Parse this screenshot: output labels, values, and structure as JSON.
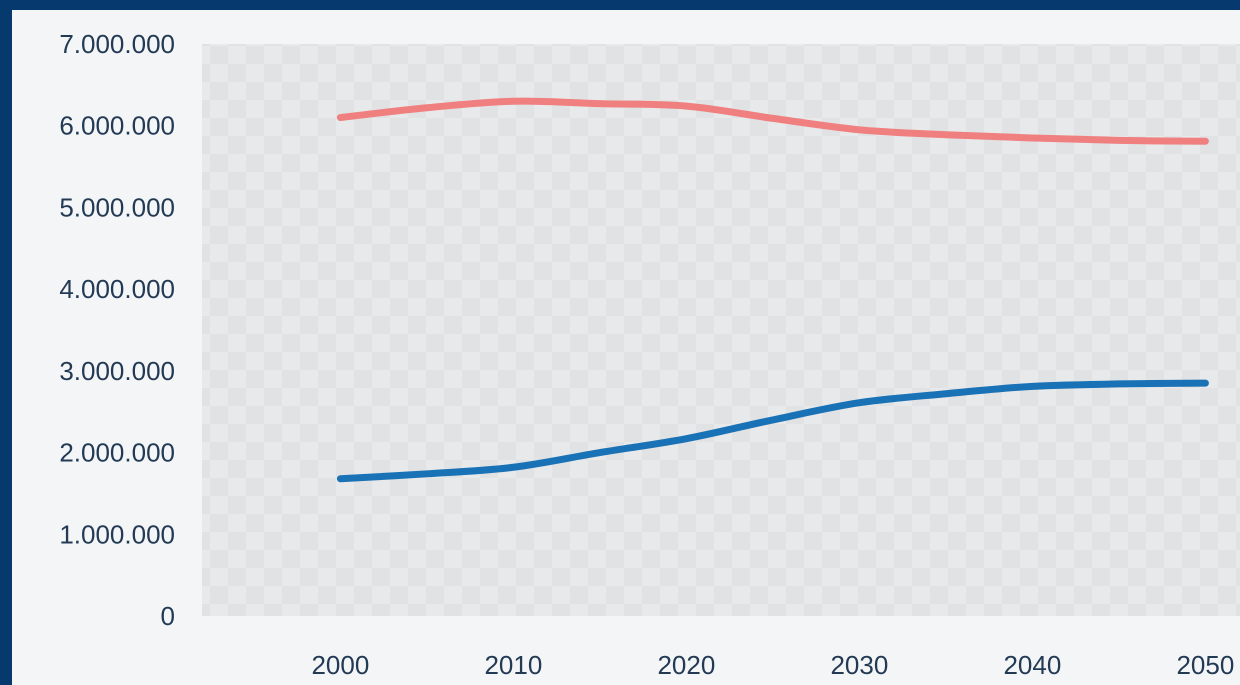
{
  "chart_data": {
    "type": "line",
    "x": [
      2000,
      2005,
      2010,
      2015,
      2020,
      2025,
      2030,
      2035,
      2040,
      2045,
      2050
    ],
    "series": [
      {
        "color": "#f08080",
        "values": [
          6100000,
          6220000,
          6300000,
          6270000,
          6240000,
          6090000,
          5950000,
          5890000,
          5850000,
          5820000,
          5810000
        ]
      },
      {
        "color": "#1a72b6",
        "values": [
          1680000,
          1740000,
          1820000,
          2000000,
          2170000,
          2400000,
          2610000,
          2720000,
          2810000,
          2840000,
          2850000
        ]
      }
    ],
    "ylim": [
      0,
      7000000
    ],
    "xlim": [
      1992,
      2052
    ],
    "y_ticks": [
      "0",
      "1.000.000",
      "2.000.000",
      "3.000.000",
      "4.000.000",
      "5.000.000",
      "6.000.000",
      "7.000.000"
    ],
    "x_ticks": [
      "2000",
      "2010",
      "2020",
      "2030",
      "2040",
      "2050"
    ],
    "grid": false,
    "legend": "none",
    "plot_background": "#e3e4e6",
    "title": "",
    "xlabel": "",
    "ylabel": ""
  }
}
